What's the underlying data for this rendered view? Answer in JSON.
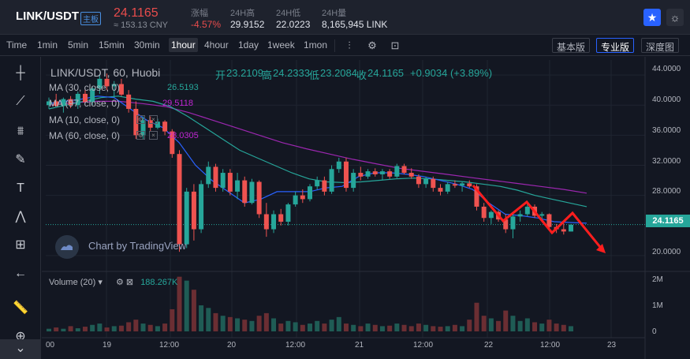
{
  "header": {
    "pair": "LINK/USDT",
    "badge": "主板",
    "price": "24.1165",
    "price_cny": "≈ 153.13 CNY",
    "stats": [
      {
        "label": "涨幅",
        "value": "-4.57%"
      },
      {
        "label": "24H高",
        "value": "29.9152"
      },
      {
        "label": "24H低",
        "value": "22.0223"
      },
      {
        "label": "24H量",
        "value": "8,165,945 LINK"
      }
    ]
  },
  "toolbar": {
    "timeframes": [
      "Time",
      "1min",
      "5min",
      "15min",
      "30min",
      "1hour",
      "4hour",
      "1day",
      "1week",
      "1mon"
    ],
    "active_timeframe": "1hour",
    "modes": [
      "基本版",
      "专业版",
      "深度图"
    ],
    "active_mode": "专业版"
  },
  "legend": {
    "symbol": "LINK/USDT, 60, Huobi",
    "ohlc": {
      "open_label": "开",
      "open": "23.2109",
      "high_label": "高",
      "high": "24.2333",
      "low_label": "低",
      "low": "23.2084",
      "close_label": "收",
      "close": "24.1165",
      "change": "+0.9034 (+3.89%)"
    },
    "ma": [
      {
        "label": "MA (30, close, 0)",
        "value": "26.5193",
        "color": "#26a69a"
      },
      {
        "label": "MA (97, close, 0)",
        "value": "29.5118",
        "color": "#c026d3"
      },
      {
        "label": "MA (10, close, 0)",
        "value": "",
        "color": "#2962ff"
      },
      {
        "label": "MA (60, close, 0)",
        "value": "28.0305",
        "color": "#c026d3"
      }
    ],
    "volume_label": "Volume (20)",
    "volume_value": "188.267K"
  },
  "price_axis": [
    "44.0000",
    "40.0000",
    "36.0000",
    "32.0000",
    "28.0000",
    "24.1165",
    "20.0000"
  ],
  "volume_axis": [
    "2M",
    "1M",
    "0"
  ],
  "time_axis": [
    "00",
    "19",
    "12:00",
    "20",
    "12:00",
    "21",
    "12:00",
    "22",
    "12:00",
    "23"
  ],
  "watermark": "Chart by TradingView",
  "colors": {
    "up": "#26a69a",
    "down": "#ef5350",
    "arrow": "#ff1e1e"
  },
  "chart_data": {
    "type": "candlestick",
    "ylim": [
      18,
      46
    ],
    "candles": [
      [
        40,
        41,
        39.5,
        40.5
      ],
      [
        40.5,
        41.5,
        39.8,
        39.9
      ],
      [
        39.9,
        41,
        39,
        40.8
      ],
      [
        40.8,
        41.2,
        39.6,
        40
      ],
      [
        40,
        41.8,
        39.5,
        41.5
      ],
      [
        41.5,
        42,
        40.2,
        40.4
      ],
      [
        40.4,
        42.5,
        40,
        42.2
      ],
      [
        42.2,
        44,
        41.5,
        43.5
      ],
      [
        43.5,
        44.2,
        42,
        42.5
      ],
      [
        42.5,
        43.2,
        41,
        42.8
      ],
      [
        42.8,
        43.5,
        41.2,
        41.4
      ],
      [
        41.4,
        42,
        39,
        39.5
      ],
      [
        39.5,
        40.5,
        35.5,
        36
      ],
      [
        36,
        38.5,
        35.5,
        38
      ],
      [
        38,
        38.5,
        36.5,
        37
      ],
      [
        37,
        38.2,
        36.8,
        37.8
      ],
      [
        37.8,
        38,
        36,
        36.5
      ],
      [
        36.5,
        36.8,
        33,
        33.5
      ],
      [
        33.5,
        34,
        20.5,
        21.5
      ],
      [
        21.5,
        29,
        21,
        28.5
      ],
      [
        28.5,
        29.5,
        22,
        23.5
      ],
      [
        23.5,
        30,
        23,
        29.5
      ],
      [
        29.5,
        32.5,
        29,
        31.8
      ],
      [
        31.8,
        32.2,
        28.5,
        29
      ],
      [
        29,
        31.5,
        28.5,
        31
      ],
      [
        31,
        31.5,
        28,
        28.5
      ],
      [
        28.5,
        31,
        27.5,
        30
      ],
      [
        30,
        30.5,
        26.5,
        27
      ],
      [
        27,
        30.2,
        26.8,
        29.8
      ],
      [
        29.8,
        30,
        25,
        25.5
      ],
      [
        25.5,
        27,
        22.5,
        23.5
      ],
      [
        23.5,
        26,
        23,
        25.5
      ],
      [
        25.5,
        26.2,
        24,
        24.5
      ],
      [
        24.5,
        27,
        24,
        26.8
      ],
      [
        26.8,
        28.5,
        26.5,
        28
      ],
      [
        28,
        28.8,
        27,
        27.5
      ],
      [
        27.5,
        29.5,
        27.2,
        29.2
      ],
      [
        29.2,
        30.5,
        28.8,
        30
      ],
      [
        30,
        30.5,
        28,
        28.5
      ],
      [
        28.5,
        32,
        28.2,
        31.5
      ],
      [
        31.5,
        33,
        31,
        32.5
      ],
      [
        32.5,
        33,
        28.5,
        29
      ],
      [
        29,
        31.5,
        28.5,
        31
      ],
      [
        31,
        31.8,
        30,
        30.5
      ],
      [
        30.5,
        31.5,
        30.2,
        31.2
      ],
      [
        31.2,
        31.6,
        30.5,
        30.8
      ],
      [
        30.8,
        31.5,
        30,
        31.2
      ],
      [
        31.2,
        31.5,
        30.2,
        30.5
      ],
      [
        30.5,
        32.2,
        30.3,
        31.9
      ],
      [
        31.9,
        32.2,
        30.8,
        31
      ],
      [
        31,
        31.6,
        30.2,
        30.5
      ],
      [
        30.5,
        30.8,
        29,
        29.5
      ],
      [
        29.5,
        30.5,
        29,
        30.2
      ],
      [
        30.2,
        30.5,
        28.5,
        29
      ],
      [
        29,
        29.5,
        28,
        28.5
      ],
      [
        28.5,
        29.8,
        28.2,
        29.5
      ],
      [
        29.5,
        30,
        29,
        29.3
      ],
      [
        29.3,
        29.8,
        28.5,
        29.6
      ],
      [
        29.6,
        30,
        29,
        29.2
      ],
      [
        29.2,
        29.5,
        26,
        26.5
      ],
      [
        26.5,
        27,
        24.5,
        25
      ],
      [
        25,
        26,
        24.2,
        25.8
      ],
      [
        25.8,
        26,
        24.5,
        24.8
      ],
      [
        24.8,
        25.5,
        23,
        23.5
      ],
      [
        23.5,
        25.5,
        22.3,
        25.2
      ],
      [
        25.2,
        26,
        24.5,
        25.5
      ],
      [
        25.5,
        27,
        25.2,
        26.5
      ],
      [
        26.5,
        26.8,
        25,
        25.3
      ],
      [
        25.3,
        25.8,
        24.5,
        25.5
      ],
      [
        25.5,
        25.6,
        23.5,
        23.8
      ],
      [
        23.8,
        24.2,
        23,
        23.5
      ],
      [
        23.5,
        24.3,
        22.8,
        23.2
      ],
      [
        23.2,
        24.2,
        23.2,
        24.1
      ]
    ],
    "ma10": [
      40.2,
      40.5,
      40.8,
      41.2,
      41,
      39.5,
      38,
      37,
      35,
      32,
      30,
      28.5,
      27,
      27.5,
      28.5,
      28.5,
      28.5,
      29,
      29.2,
      30.5,
      31,
      31,
      30.8,
      30.5,
      30,
      29.5,
      28.8,
      27,
      25.5,
      25.3,
      25,
      24.5,
      24.4,
      24.3
    ],
    "ma30": [
      39.5,
      40,
      40.5,
      41,
      41.2,
      40.8,
      40.5,
      39.8,
      38.5,
      37,
      35.5,
      34,
      33,
      32,
      31,
      30.2,
      29.8,
      29.7,
      29.8,
      30,
      30.2,
      30.3,
      30.2,
      30,
      29.8,
      29.5,
      29.2,
      28.7,
      28,
      27.5,
      27,
      26.5
    ],
    "ma60": [
      40,
      40.3,
      40.5,
      40.5,
      40.2,
      39.8,
      39,
      38,
      37,
      36,
      35,
      34.2,
      33.5,
      32.8,
      32.2,
      31.6,
      31.2,
      30.8,
      30.4,
      30,
      29.6,
      29.2,
      28.8,
      28.3
    ]
  },
  "volume_data": [
    0.1,
    0.15,
    0.1,
    0.2,
    0.12,
    0.18,
    0.25,
    0.3,
    0.15,
    0.2,
    0.22,
    0.35,
    0.45,
    0.3,
    0.25,
    0.2,
    0.3,
    0.85,
    2.1,
    1.95,
    1.6,
    1.0,
    0.9,
    0.7,
    0.6,
    0.55,
    0.5,
    0.45,
    0.4,
    0.6,
    0.7,
    0.5,
    0.3,
    0.4,
    0.35,
    0.25,
    0.3,
    0.4,
    0.3,
    0.45,
    0.55,
    0.3,
    0.25,
    0.2,
    0.3,
    0.25,
    0.2,
    0.22,
    0.3,
    0.25,
    0.2,
    0.3,
    0.25,
    0.2,
    0.18,
    0.2,
    0.25,
    0.2,
    0.45,
    1.1,
    0.6,
    0.5,
    0.4,
    0.8,
    0.6,
    0.4,
    0.5,
    0.35,
    0.3,
    0.45,
    0.3,
    0.25,
    0.2
  ]
}
